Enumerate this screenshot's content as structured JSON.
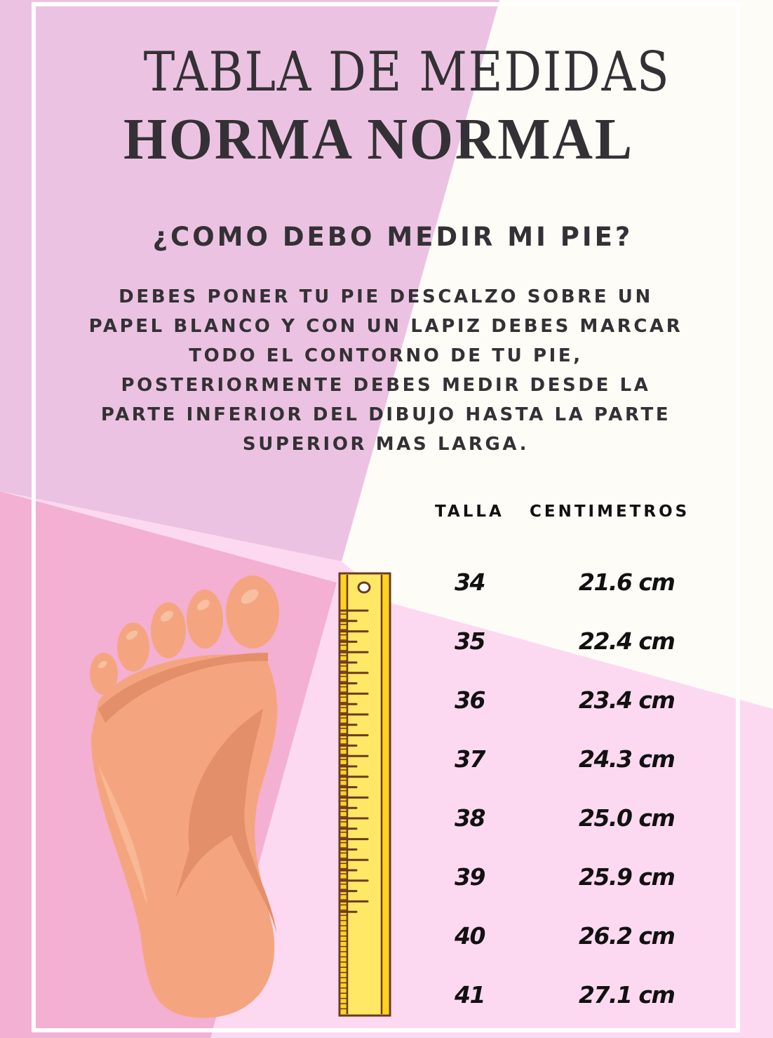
{
  "title_line1": "TABLA DE MEDIDAS",
  "title_line2": "HORMA NORMAL",
  "question": "¿COMO DEBO MEDIR MI PIE?",
  "instructions": [
    "DEBES PONER TU PIE DESCALZO SOBRE UN",
    "PAPEL BLANCO Y CON UN LAPIZ DEBES MARCAR",
    "TODO EL CONTORNO DE TU PIE,",
    "POSTERIORMENTE DEBES MEDIR DESDE LA",
    "PARTE INFERIOR DEL DIBUJO HASTA LA PARTE",
    "SUPERIOR MAS LARGA."
  ],
  "table": {
    "headers": [
      "TALLA",
      "CENTIMETROS"
    ],
    "rows": [
      [
        "34",
        "21.6 cm"
      ],
      [
        "35",
        "22.4 cm"
      ],
      [
        "36",
        "23.4 cm"
      ],
      [
        "37",
        "24.3 cm"
      ],
      [
        "38",
        "25.0 cm"
      ],
      [
        "39",
        "25.9 cm"
      ],
      [
        "40",
        "26.2 cm"
      ],
      [
        "41",
        "27.1 cm"
      ]
    ]
  },
  "illustrations": [
    "foot-icon",
    "ruler-icon"
  ],
  "colors": {
    "mauve": "#ecc2e2",
    "pink": "#f3b0d2",
    "light_pink": "#fdd9f1",
    "cream": "#fdfcf6",
    "text": "#333135",
    "skin": "#f4a57f",
    "ruler": "#ffe866"
  }
}
